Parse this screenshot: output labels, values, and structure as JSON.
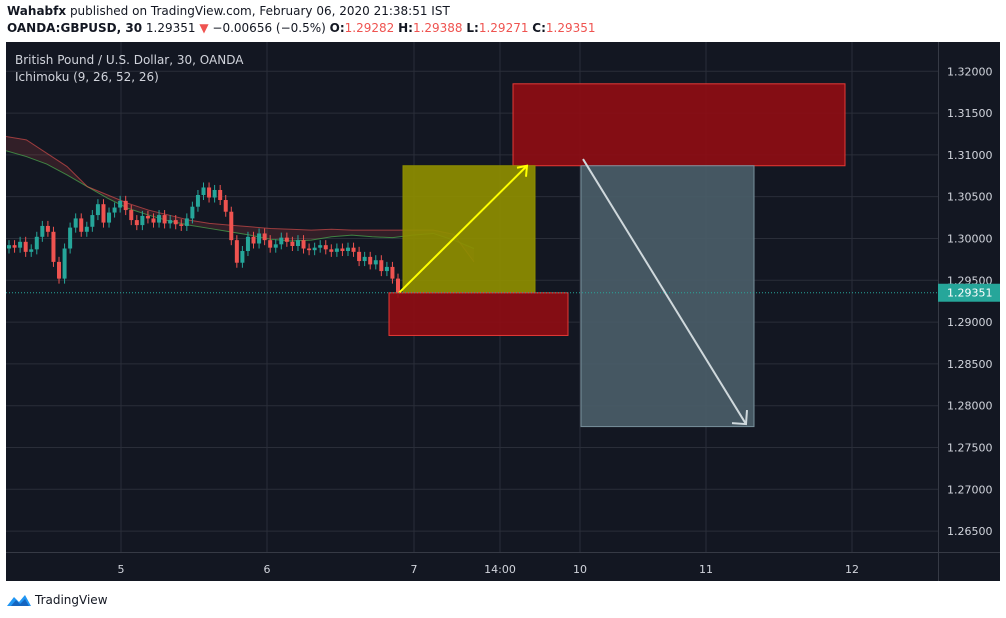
{
  "header": {
    "author": "Wahabfx",
    "published_text": "published on TradingView.com, February 06, 2020 21:38:51 IST",
    "symbol": "OANDA:GBPUSD, 30",
    "price": "1.29351",
    "change_arrow": "▼",
    "change": "−0.00656 (−0.5%)",
    "open_label": "O:",
    "open": "1.29282",
    "high_label": "H:",
    "high": "1.29388",
    "low_label": "L:",
    "low": "1.29271",
    "close_label": "C:",
    "close": "1.29351"
  },
  "legend": {
    "instrument": "British Pound / U.S. Dollar, 30, OANDA",
    "indicator": "Ichimoku (9, 26, 52, 26)"
  },
  "footer": {
    "brand": "TradingView"
  },
  "colors": {
    "background": "#131722",
    "grid": "#2a2e39",
    "up": "#26a69a",
    "down": "#ef5350",
    "current_price": "#26a69a",
    "sell_zone": "#8e0d14",
    "buy_zone": "#8e8e00",
    "target_zone": "#4a5d68",
    "up_arrow": "#ffff00",
    "down_arrow": "#cfd8dc"
  },
  "chart_data": {
    "type": "candlestick",
    "title": "British Pound / U.S. Dollar, 30, OANDA",
    "indicator": "Ichimoku (9, 26, 52, 26)",
    "x_ticks": [
      "5",
      "6",
      "7",
      "14:00",
      "10",
      "11",
      "12"
    ],
    "y_ticks": [
      "1.32000",
      "1.31500",
      "1.31000",
      "1.30500",
      "1.30000",
      "1.29500",
      "1.29000",
      "1.28500",
      "1.28000",
      "1.27500",
      "1.27000",
      "1.26500"
    ],
    "y_tick_values": [
      1.32,
      1.315,
      1.31,
      1.305,
      1.3,
      1.295,
      1.29,
      1.285,
      1.28,
      1.275,
      1.27,
      1.265
    ],
    "ylim": [
      1.2625,
      1.3235
    ],
    "current_price_label": "1.29351",
    "current_price": 1.29351,
    "candles_close": [
      1.2992,
      1.2989,
      1.2996,
      1.2984,
      1.2987,
      1.3002,
      1.3015,
      1.3008,
      1.2972,
      1.2952,
      1.2988,
      1.3013,
      1.3024,
      1.3008,
      1.3014,
      1.3028,
      1.3041,
      1.3019,
      1.3031,
      1.3037,
      1.3045,
      1.3034,
      1.3022,
      1.3016,
      1.3027,
      1.3024,
      1.3019,
      1.3028,
      1.3018,
      1.3022,
      1.3017,
      1.3015,
      1.3024,
      1.3038,
      1.3052,
      1.3061,
      1.3049,
      1.3058,
      1.3046,
      1.3032,
      1.2998,
      1.2971,
      1.2985,
      1.3002,
      1.2994,
      1.3006,
      1.2998,
      1.2989,
      1.2993,
      1.3001,
      1.2996,
      1.2991,
      1.2998,
      1.2988,
      1.2986,
      1.2989,
      1.2992,
      1.2987,
      1.2984,
      1.2988,
      1.2985,
      1.2989,
      1.2984,
      1.2973,
      1.2978,
      1.2969,
      1.2974,
      1.2961,
      1.2966,
      1.2952,
      1.2935
    ],
    "kumo_span_a": [
      1.3105,
      1.3098,
      1.3089,
      1.3076,
      1.3062,
      1.3048,
      1.3036,
      1.3028,
      1.3021,
      1.3016,
      1.3012,
      1.3008,
      1.3004,
      1.2999,
      1.2997,
      1.2998,
      1.3002,
      1.3004,
      1.3002,
      1.3001,
      1.3004,
      1.3006,
      1.2998,
      1.2988
    ],
    "kumo_span_b": [
      1.3122,
      1.3118,
      1.3102,
      1.3086,
      1.3062,
      1.3052,
      1.3042,
      1.3034,
      1.3028,
      1.3022,
      1.3018,
      1.3016,
      1.3014,
      1.3012,
      1.3011,
      1.301,
      1.3011,
      1.301,
      1.301,
      1.301,
      1.301,
      1.301,
      1.3005,
      1.2972
    ],
    "zones": [
      {
        "name": "sell-zone-upper",
        "y_top": 1.3185,
        "y_bottom": 1.3087,
        "x_start": "14:00",
        "x_end": "11"
      },
      {
        "name": "buy-target-zone",
        "y_top": 1.3087,
        "y_bottom": 1.2935,
        "x_start": "7",
        "x_end": "14:00"
      },
      {
        "name": "support-zone-lower",
        "y_top": 1.2935,
        "y_bottom": 1.2884,
        "x_start": "7",
        "x_end": "10"
      },
      {
        "name": "short-target-zone",
        "y_top": 1.3087,
        "y_bottom": 1.2775,
        "x_start": "10",
        "x_end": "11"
      }
    ],
    "arrows": [
      {
        "name": "up-arrow",
        "from_price": 1.2935,
        "to_price": 1.3087
      },
      {
        "name": "down-arrow",
        "from_price": 1.3095,
        "to_price": 1.2778
      }
    ]
  }
}
